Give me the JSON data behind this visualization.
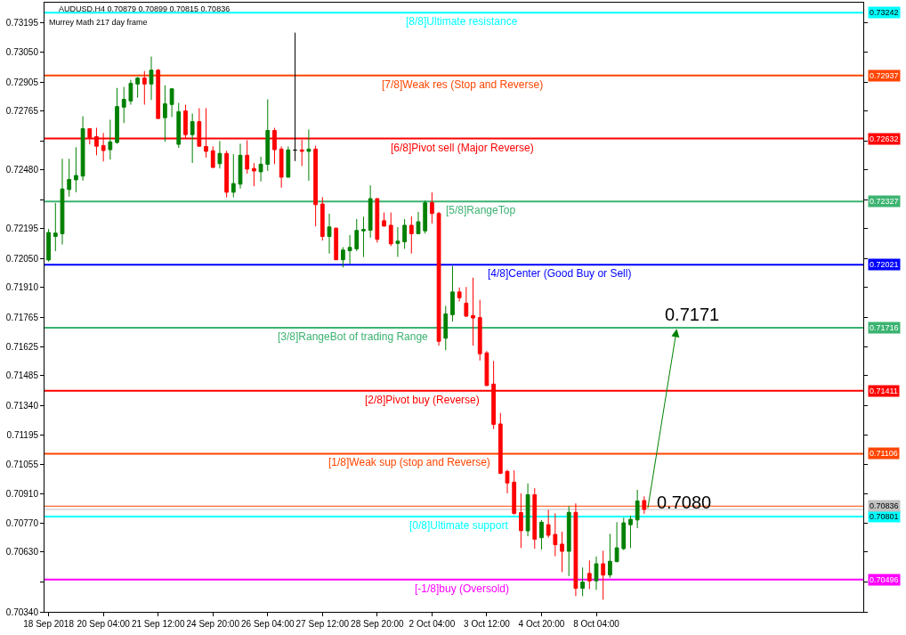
{
  "chart_data": {
    "type": "candlestick",
    "title": "AUDUSD.H4 0.70879 0.70899 0.70815 0.70836",
    "subtitle": "Murrey Math 217 day frame",
    "categories": [
      "18 Sep 2018",
      null,
      null,
      null,
      null,
      null,
      null,
      null,
      "20 Sep 04:00",
      null,
      null,
      null,
      null,
      null,
      null,
      null,
      "21 Sep 12:00",
      null,
      null,
      null,
      null,
      null,
      null,
      null,
      "24 Sep 20:00",
      null,
      null,
      null,
      null,
      null,
      null,
      null,
      "26 Sep 04:00",
      null,
      null,
      null,
      null,
      null,
      null,
      null,
      "27 Sep 12:00",
      null,
      null,
      null,
      null,
      null,
      null,
      null,
      "28 Sep 20:00",
      null,
      null,
      null,
      null,
      null,
      null,
      null,
      "2 Oct 04:00",
      null,
      null,
      null,
      null,
      null,
      null,
      null,
      "3 Oct 12:00",
      null,
      null,
      null,
      null,
      null,
      null,
      null,
      "4 Oct 20:00",
      null,
      null,
      null,
      null,
      null,
      null,
      null,
      "8 Oct 04:00",
      null,
      null,
      null,
      null,
      null,
      null,
      null
    ],
    "ohlc": [
      [
        0.72044,
        0.72194,
        0.72036,
        0.72177
      ],
      [
        0.72158,
        0.7232,
        0.72087,
        0.72174
      ],
      [
        0.72171,
        0.72534,
        0.72119,
        0.72388
      ],
      [
        0.72385,
        0.72534,
        0.72351,
        0.72434
      ],
      [
        0.72432,
        0.7259,
        0.72372,
        0.72453
      ],
      [
        0.7245,
        0.7274,
        0.72428,
        0.7268
      ],
      [
        0.7268,
        0.72682,
        0.72604,
        0.72637
      ],
      [
        0.72641,
        0.72684,
        0.72551,
        0.72595
      ],
      [
        0.72598,
        0.72659,
        0.72521,
        0.72574
      ],
      [
        0.72578,
        0.72723,
        0.7253,
        0.72616
      ],
      [
        0.72613,
        0.72877,
        0.72607,
        0.72787
      ],
      [
        0.72784,
        0.72882,
        0.72707,
        0.72822
      ],
      [
        0.72814,
        0.72916,
        0.72796,
        0.72899
      ],
      [
        0.72896,
        0.7293,
        0.7283,
        0.72925
      ],
      [
        0.72925,
        0.72959,
        0.72796,
        0.72896
      ],
      [
        0.72896,
        0.73029,
        0.72819,
        0.72963
      ],
      [
        0.72963,
        0.72969,
        0.72727,
        0.72729
      ],
      [
        0.72733,
        0.7289,
        0.72617,
        0.728
      ],
      [
        0.72797,
        0.72875,
        0.72736,
        0.72873
      ],
      [
        0.72604,
        0.72805,
        0.72587,
        0.72762
      ],
      [
        0.72766,
        0.72796,
        0.72633,
        0.72651
      ],
      [
        0.72651,
        0.72753,
        0.72514,
        0.72714
      ],
      [
        0.72714,
        0.72779,
        0.72593,
        0.72595
      ],
      [
        0.72594,
        0.72779,
        0.7254,
        0.7257
      ],
      [
        0.72573,
        0.72594,
        0.7249,
        0.72492
      ],
      [
        0.7251,
        0.7262,
        0.72487,
        0.7256
      ],
      [
        0.7256,
        0.72573,
        0.72347,
        0.72372
      ],
      [
        0.72372,
        0.72556,
        0.72347,
        0.72414
      ],
      [
        0.72411,
        0.72607,
        0.7239,
        0.72551
      ],
      [
        0.72551,
        0.72624,
        0.72462,
        0.72484
      ],
      [
        0.72487,
        0.72513,
        0.72401,
        0.72475
      ],
      [
        0.72471,
        0.72544,
        0.72424,
        0.72508
      ],
      [
        0.72507,
        0.72822,
        0.72475,
        0.72671
      ],
      [
        0.72671,
        0.72684,
        0.72508,
        0.72578
      ],
      [
        0.72581,
        0.72594,
        0.72394,
        0.72445
      ],
      [
        0.72445,
        0.72594,
        0.72443,
        0.72577
      ],
      [
        0.72576,
        0.73145,
        0.72523,
        0.72576
      ],
      [
        0.72577,
        0.72626,
        0.72499,
        0.7257
      ],
      [
        0.7257,
        0.72676,
        0.72428,
        0.72581
      ],
      [
        0.72581,
        0.72597,
        0.72207,
        0.72312
      ],
      [
        0.72315,
        0.72348,
        0.72138,
        0.72158
      ],
      [
        0.72158,
        0.72268,
        0.72075,
        0.72204
      ],
      [
        0.72198,
        0.72201,
        0.72043,
        0.72045
      ],
      [
        0.72045,
        0.72106,
        0.72008,
        0.72092
      ],
      [
        0.72089,
        0.72165,
        0.72024,
        0.72105
      ],
      [
        0.72098,
        0.72242,
        0.72087,
        0.72187
      ],
      [
        0.72185,
        0.72254,
        0.72058,
        0.72192
      ],
      [
        0.72188,
        0.72405,
        0.72152,
        0.72341
      ],
      [
        0.72341,
        0.72343,
        0.72128,
        0.72144
      ],
      [
        0.72234,
        0.72274,
        0.72206,
        0.72208
      ],
      [
        0.72212,
        0.72274,
        0.72111,
        0.72122
      ],
      [
        0.72124,
        0.72203,
        0.72059,
        0.72135
      ],
      [
        0.72132,
        0.72242,
        0.72098,
        0.72212
      ],
      [
        0.72212,
        0.72255,
        0.72075,
        0.72171
      ],
      [
        0.72171,
        0.72277,
        0.72169,
        0.72229
      ],
      [
        0.72185,
        0.72332,
        0.72172,
        0.72321
      ],
      [
        0.72322,
        0.72371,
        0.72221,
        0.72269
      ],
      [
        0.72269,
        0.72277,
        0.71629,
        0.7165
      ],
      [
        0.71665,
        0.71822,
        0.71607,
        0.71783
      ],
      [
        0.71779,
        0.72015,
        0.71746,
        0.71889
      ],
      [
        0.71889,
        0.71911,
        0.71843,
        0.71861
      ],
      [
        0.71835,
        0.71913,
        0.71768,
        0.71772
      ],
      [
        0.71775,
        0.71958,
        0.71629,
        0.71763
      ],
      [
        0.71765,
        0.71851,
        0.71557,
        0.7159
      ],
      [
        0.71594,
        0.71603,
        0.71434,
        0.71436
      ],
      [
        0.71443,
        0.71555,
        0.71225,
        0.71248
      ],
      [
        0.7125,
        0.71303,
        0.71007,
        0.71011
      ],
      [
        0.7102,
        0.71028,
        0.70914,
        0.70964
      ],
      [
        0.70968,
        0.71025,
        0.70811,
        0.70817
      ],
      [
        0.70821,
        0.70914,
        0.70649,
        0.70733
      ],
      [
        0.70732,
        0.70962,
        0.70706,
        0.70907
      ],
      [
        0.70907,
        0.70939,
        0.70646,
        0.70692
      ],
      [
        0.70699,
        0.70784,
        0.70642,
        0.70774
      ],
      [
        0.70762,
        0.70834,
        0.70699,
        0.70711
      ],
      [
        0.70715,
        0.70817,
        0.70609,
        0.70665
      ],
      [
        0.70668,
        0.70728,
        0.70532,
        0.70633
      ],
      [
        0.70633,
        0.70852,
        0.70513,
        0.70822
      ],
      [
        0.70822,
        0.70865,
        0.70416,
        0.70454
      ],
      [
        0.70454,
        0.70555,
        0.70416,
        0.70484
      ],
      [
        0.70526,
        0.70589,
        0.7045,
        0.7049
      ],
      [
        0.7049,
        0.70608,
        0.70446,
        0.70573
      ],
      [
        0.70573,
        0.70636,
        0.70399,
        0.70518
      ],
      [
        0.70519,
        0.70718,
        0.70505,
        0.70585
      ],
      [
        0.70583,
        0.70774,
        0.70581,
        0.7065
      ],
      [
        0.70646,
        0.70796,
        0.70639,
        0.70771
      ],
      [
        0.70762,
        0.70806,
        0.70649,
        0.70788
      ],
      [
        0.70785,
        0.70931,
        0.70745,
        0.70877
      ],
      [
        0.70879,
        0.70899,
        0.70815,
        0.70836
      ]
    ],
    "colors": [
      "#008000",
      "#008000",
      "#008000",
      "#008000",
      "#008000",
      "#008000",
      "#ff0000",
      "#ff0000",
      "#ff0000",
      "#008000",
      "#008000",
      "#008000",
      "#008000",
      "#008000",
      "#ff0000",
      "#008000",
      "#ff0000",
      "#008000",
      "#008000",
      "#008000",
      "#ff0000",
      "#008000",
      "#ff0000",
      "#ff0000",
      "#ff0000",
      "#008000",
      "#ff0000",
      "#008000",
      "#008000",
      "#ff0000",
      "#ff0000",
      "#008000",
      "#008000",
      "#ff0000",
      "#ff0000",
      "#008000",
      "#000000",
      "#ff0000",
      "#008000",
      "#ff0000",
      "#ff0000",
      "#008000",
      "#ff0000",
      "#008000",
      "#008000",
      "#008000",
      "#008000",
      "#008000",
      "#ff0000",
      "#ff0000",
      "#ff0000",
      "#008000",
      "#008000",
      "#ff0000",
      "#008000",
      "#008000",
      "#ff0000",
      "#ff0000",
      "#008000",
      "#008000",
      "#ff0000",
      "#ff0000",
      "#ff0000",
      "#ff0000",
      "#ff0000",
      "#ff0000",
      "#ff0000",
      "#ff0000",
      "#ff0000",
      "#ff0000",
      "#008000",
      "#ff0000",
      "#008000",
      "#ff0000",
      "#ff0000",
      "#ff0000",
      "#008000",
      "#ff0000",
      "#008000",
      "#ff0000",
      "#008000",
      "#ff0000",
      "#008000",
      "#008000",
      "#008000",
      "#008000",
      "#008000",
      "#ff0000"
    ],
    "ylim": [
      0.7034,
      0.7329
    ],
    "yticks": [
      {
        "value": 0.73195,
        "label": "0.73195"
      },
      {
        "value": 0.7305,
        "label": "0.73050"
      },
      {
        "value": 0.72905,
        "label": "0.72905"
      },
      {
        "value": 0.72765,
        "label": "0.72765"
      },
      {
        "value": 0.7262,
        "label": null
      },
      {
        "value": 0.7248,
        "label": "0.72480"
      },
      {
        "value": 0.72335,
        "label": null
      },
      {
        "value": 0.72195,
        "label": "0.72195"
      },
      {
        "value": 0.7205,
        "label": "0.72050"
      },
      {
        "value": 0.7191,
        "label": "0.71910"
      },
      {
        "value": 0.71765,
        "label": "0.71765"
      },
      {
        "value": 0.71625,
        "label": "0.71625"
      },
      {
        "value": 0.71485,
        "label": "0.71485"
      },
      {
        "value": 0.7134,
        "label": "0.71340"
      },
      {
        "value": 0.71195,
        "label": "0.71195"
      },
      {
        "value": 0.71055,
        "label": "0.71055"
      },
      {
        "value": 0.7091,
        "label": "0.70910"
      },
      {
        "value": 0.7077,
        "label": "0.70770"
      },
      {
        "value": 0.7063,
        "label": "0.70630"
      },
      {
        "value": 0.70485,
        "label": null
      },
      {
        "value": 0.7034,
        "label": "0.70340"
      }
    ],
    "ref_lines": [
      {
        "axis": "y",
        "value": 0.73242,
        "label": "0.73242",
        "color": "#00ffff"
      },
      {
        "axis": "y",
        "value": 0.72937,
        "label": "0.72937",
        "color": "#ff4500"
      },
      {
        "axis": "y",
        "value": 0.72632,
        "label": "0.72632",
        "color": "#ff0000"
      },
      {
        "axis": "y",
        "value": 0.72327,
        "label": "0.72327",
        "color": "#3cb371"
      },
      {
        "axis": "y",
        "value": 0.72021,
        "label": "0.72021",
        "color": "#0000ff"
      },
      {
        "axis": "y",
        "value": 0.71716,
        "label": "0.71716",
        "color": "#3cb371"
      },
      {
        "axis": "y",
        "value": 0.71411,
        "label": "0.71411",
        "color": "#ff0000"
      },
      {
        "axis": "y",
        "value": 0.71106,
        "label": "0.71106",
        "color": "#ff4500"
      },
      {
        "axis": "y",
        "value": 0.70801,
        "label": "0.70801",
        "color": "#00ffff"
      },
      {
        "axis": "y",
        "value": 0.70496,
        "label": "0.70496",
        "color": "#ff00ff"
      },
      {
        "axis": "y",
        "value": 0.70852,
        "color": "#ff4500"
      },
      {
        "axis": "y",
        "value": 0.70836,
        "label": "0.70836",
        "color": "#c0c0c0"
      }
    ],
    "annotations": [
      {
        "text": "[8/8]Ultimate resistance",
        "y": 0.73242
      },
      {
        "text": "[7/8]Weak res (Stop and Reverse)",
        "y": 0.72937
      },
      {
        "text": "[6/8]Pivot sell (Major Reverse)",
        "y": 0.72632
      },
      {
        "text": "[5/8]RangeTop",
        "y": 0.72327
      },
      {
        "text": "[4/8]Center (Good Buy or Sell)",
        "y": 0.72021
      },
      {
        "text": "[3/8]RangeBot of trading Range",
        "y": 0.71716
      },
      {
        "text": "[2/8]Pivot buy (Reverse)",
        "y": 0.71411
      },
      {
        "text": "[1/8]Weak sup (stop and Reverse)",
        "y": 0.71106
      },
      {
        "text": "[0/8]Ultimate support",
        "y": 0.70801
      },
      {
        "text": "[-1/8]buy (Oversold)",
        "y": 0.70496
      },
      {
        "text": "0.7080",
        "y": 0.708
      },
      {
        "text": "0.7171",
        "y": 0.7171
      }
    ]
  }
}
